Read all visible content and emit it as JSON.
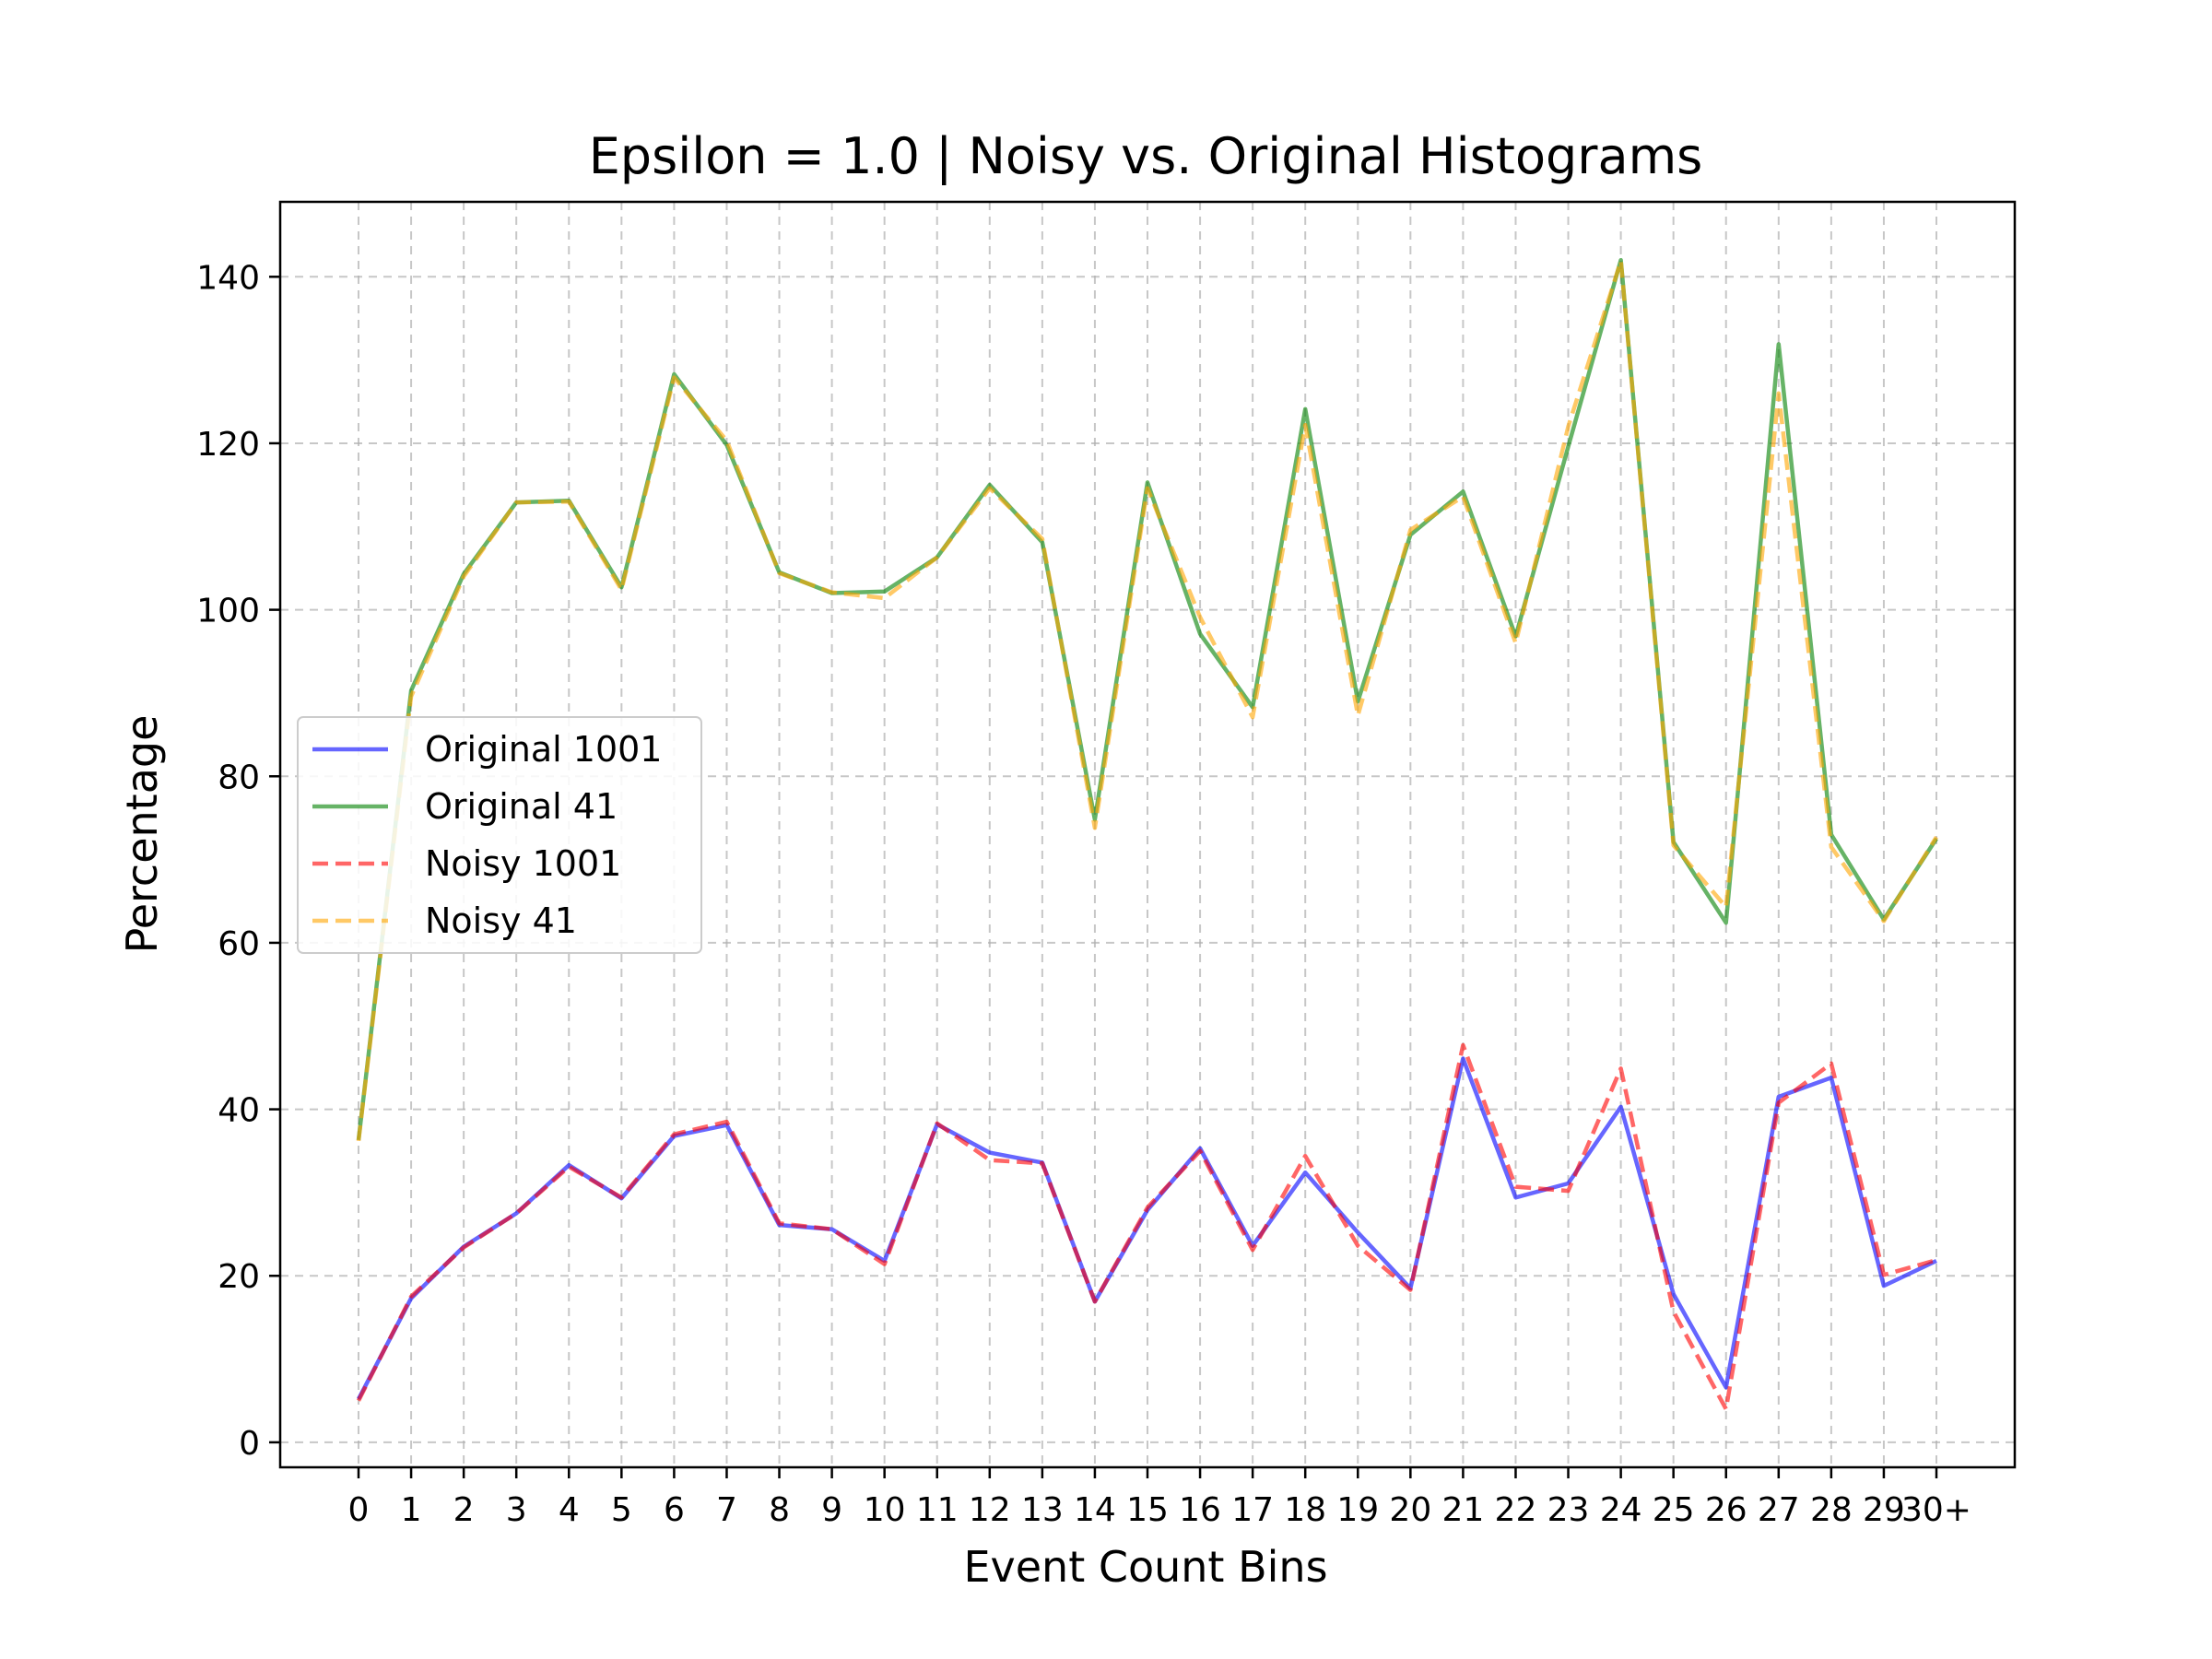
{
  "chart_data": {
    "type": "line",
    "title": "Epsilon = 1.0 | Noisy vs. Original Histograms",
    "xlabel": "Event Count Bins",
    "ylabel": "Percentage",
    "categories": [
      "0",
      "1",
      "2",
      "3",
      "4",
      "5",
      "6",
      "7",
      "8",
      "9",
      "10",
      "11",
      "12",
      "13",
      "14",
      "15",
      "16",
      "17",
      "18",
      "19",
      "20",
      "21",
      "22",
      "23",
      "24",
      "25",
      "26",
      "27",
      "28",
      "29",
      "30+"
    ],
    "ylim": [
      -3,
      149
    ],
    "yticks": [
      0,
      20,
      40,
      60,
      80,
      100,
      120,
      140
    ],
    "grid": true,
    "legend_position": "center-left",
    "series": [
      {
        "name": "Original 1001",
        "color": "#0000ff",
        "dash": "solid",
        "values": [
          5.2,
          17.3,
          23.5,
          27.5,
          33.3,
          29.3,
          36.8,
          38.1,
          26.1,
          25.6,
          21.8,
          38.2,
          34.8,
          33.6,
          16.9,
          27.9,
          35.3,
          23.6,
          32.4,
          25.2,
          18.5,
          46.1,
          29.4,
          31.1,
          40.3,
          17.8,
          6.6,
          41.5,
          43.8,
          18.8,
          21.8
        ]
      },
      {
        "name": "Original 41",
        "color": "#008000",
        "dash": "solid",
        "values": [
          36.3,
          90.3,
          104.3,
          112.9,
          113.1,
          102.7,
          128.3,
          119.8,
          104.5,
          102.0,
          102.2,
          106.3,
          115.0,
          108.1,
          74.8,
          115.3,
          97.1,
          88.3,
          124.1,
          89.0,
          109.0,
          114.2,
          96.8,
          119.6,
          142.0,
          72.1,
          62.4,
          131.9,
          73.0,
          62.8,
          72.5
        ]
      },
      {
        "name": "Noisy 1001",
        "color": "#ff0000",
        "dash": "dashed",
        "values": [
          5.0,
          17.5,
          23.4,
          27.5,
          33.1,
          29.4,
          37.0,
          38.5,
          26.3,
          25.6,
          21.4,
          38.3,
          33.9,
          33.5,
          16.9,
          28.2,
          35.0,
          23.1,
          34.4,
          23.6,
          18.3,
          47.7,
          30.7,
          30.2,
          44.9,
          15.7,
          4.0,
          40.8,
          45.5,
          20.1,
          21.9
        ]
      },
      {
        "name": "Noisy 41",
        "color": "#ffa500",
        "dash": "dashed",
        "values": [
          36.2,
          89.6,
          104.0,
          112.9,
          113.0,
          102.4,
          127.9,
          120.3,
          104.4,
          102.1,
          101.4,
          106.3,
          114.6,
          108.5,
          73.8,
          114.6,
          99.1,
          87.1,
          122.2,
          87.3,
          109.6,
          113.6,
          96.0,
          122.0,
          141.9,
          71.7,
          64.3,
          126.0,
          71.5,
          62.6,
          72.7
        ]
      }
    ]
  }
}
